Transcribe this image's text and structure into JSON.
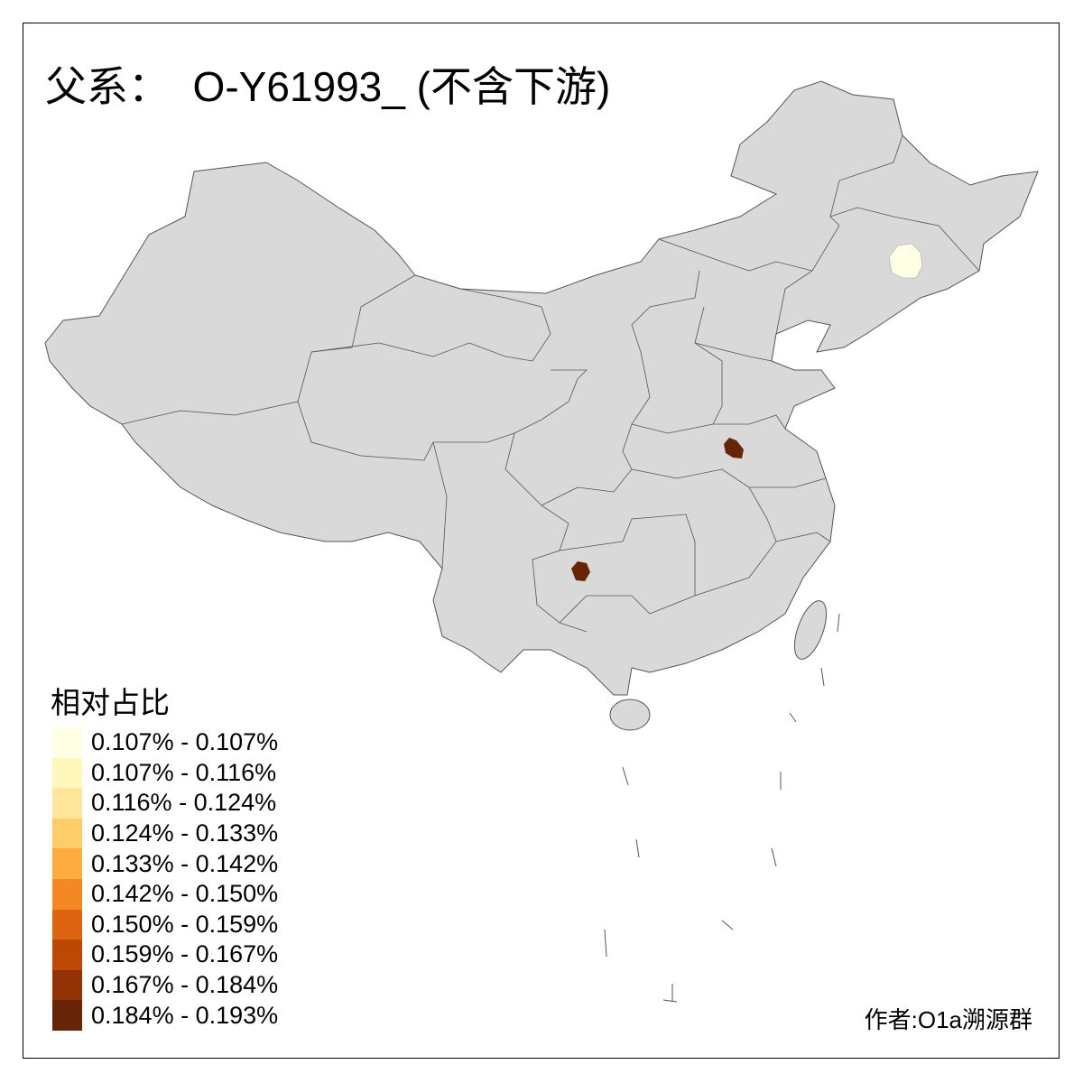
{
  "title": "父系：  O-Y61993_ (不含下游)",
  "legend": {
    "title": "相对占比",
    "items": [
      {
        "label": "0.107% - 0.107%",
        "color": "#FFFFE5"
      },
      {
        "label": "0.107% - 0.116%",
        "color": "#FFF7BC"
      },
      {
        "label": "0.116% - 0.124%",
        "color": "#FEE69A"
      },
      {
        "label": "0.124% - 0.133%",
        "color": "#FECD6A"
      },
      {
        "label": "0.133% - 0.142%",
        "color": "#FEAB3F"
      },
      {
        "label": "0.142% - 0.150%",
        "color": "#F48822"
      },
      {
        "label": "0.150% - 0.159%",
        "color": "#DF6412"
      },
      {
        "label": "0.159% - 0.167%",
        "color": "#BD4705"
      },
      {
        "label": "0.167% - 0.184%",
        "color": "#903204"
      },
      {
        "label": "0.184% - 0.193%",
        "color": "#662506"
      }
    ]
  },
  "map": {
    "base_color": "#D9D9D9",
    "border_color": "#555555",
    "highlighted_regions": [
      {
        "area": "northeast",
        "color": "#FFFFE5"
      },
      {
        "area": "anhui",
        "color": "#662506"
      },
      {
        "area": "guizhou",
        "color": "#662506"
      }
    ]
  },
  "credit": "作者:O1a溯源群"
}
